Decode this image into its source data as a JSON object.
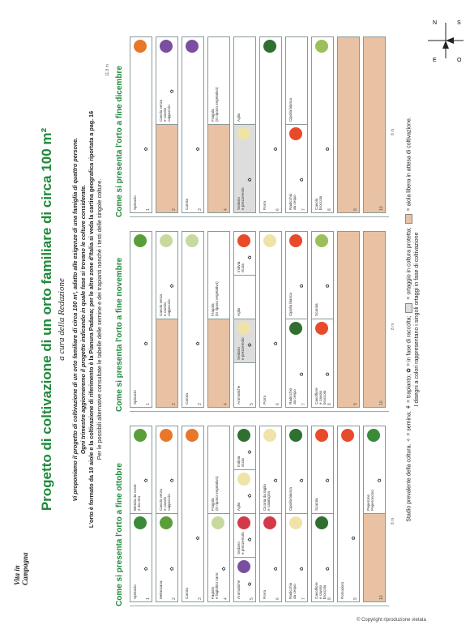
{
  "header": {
    "title": "Progetto di coltivazione di un orto familiare di circa 100 m²",
    "subtitle": "a cura della Redazione",
    "intro_line1": "Vi proponiamo il progetto di coltivazione di un orto familiare di circa 100 m², adatto alle esigenze di una famiglia di quattro persone.",
    "intro_line2": "Ogni trimestre aggiorneremo il progetto indicando in quale fase si trovano le colture considerate.",
    "intro_line3": "L'orto è formato da 10 aiole e la coltivazione di riferimento è la Pianura Padana; per le altre zone d'Italia si veda la cartina geografica riportata a pag. 16",
    "intro_line4": "Per le possibili alternative consultate le tabelle delle semine e dei trapianti nonché i testi delle singole colture."
  },
  "panels": [
    {
      "title": "Come si presenta l'orto a fine ottobre",
      "rows": [
        {
          "num": "1",
          "free": false,
          "cells": [
            {
              "label": "Spinacio",
              "gray": false,
              "sym": "✿"
            },
            {
              "label": "Bietola da coste\ne da orto",
              "gray": false,
              "sym": "✿"
            }
          ]
        },
        {
          "num": "2",
          "free": false,
          "cells": [
            {
              "label": "Melanzana",
              "gray": false,
              "sym": "✿"
            },
            {
              "label": "Cavolo verza\ne cavolo\ncappuccio",
              "gray": false,
              "sym": "✿"
            }
          ]
        },
        {
          "num": "3",
          "free": false,
          "cells": [
            {
              "label": "Carota",
              "gray": false,
              "sym": "✿"
            }
          ]
        },
        {
          "num": "4",
          "free": false,
          "cells": [
            {
              "label": "Fagiolo\ne fagiolino nano",
              "gray": false,
              "sym": "✿"
            },
            {
              "label": "Fragola\n(in riposo vegetativo)",
              "gray": false,
              "sym": ""
            }
          ]
        },
        {
          "num": "5",
          "free": false,
          "cells": [
            {
              "label": "Aromatiche",
              "gray": false,
              "sym": "✿"
            },
            {
              "label": "Sedano\ne prezzemolo",
              "gray": false,
              "sym": "✿"
            },
            {
              "label": "Aglio",
              "gray": false,
              "sym": "✿"
            },
            {
              "label": "Indivia\nriccia",
              "gray": false,
              "sym": "✿"
            }
          ]
        },
        {
          "num": "6",
          "free": false,
          "cells": [
            {
              "label": "Porro",
              "gray": false,
              "sym": "✿"
            },
            {
              "label": "Cicoria da taglio\ne catalogna",
              "gray": false,
              "sym": "✿"
            }
          ]
        },
        {
          "num": "7",
          "free": false,
          "cells": [
            {
              "label": "Radicchio\nda cespo",
              "gray": false,
              "sym": "✿"
            },
            {
              "label": "Cipolla bianca",
              "gray": false,
              "sym": "✿"
            }
          ]
        },
        {
          "num": "8",
          "free": false,
          "cells": [
            {
              "label": "Cavolfiore\ne cavolo\nbroccolo",
              "gray": false,
              "sym": "✿"
            },
            {
              "label": "Scarola",
              "gray": false,
              "sym": "✿"
            }
          ]
        },
        {
          "num": "9",
          "free": false,
          "cells": [
            {
              "label": "Pomodoro",
              "gray": false,
              "sym": "✿"
            }
          ]
        },
        {
          "num": "10",
          "free": true,
          "cells": [
            {
              "label": "",
              "gray": false,
              "sym": ""
            },
            {
              "label": "Peperone\nPeperoncino",
              "gray": false,
              "sym": "✿"
            }
          ]
        }
      ]
    },
    {
      "title": "Come si presenta l'orto a fine novembre",
      "rows": [
        {
          "num": "1",
          "free": false,
          "cells": [
            {
              "label": "Spinacio",
              "gray": false,
              "sym": "✿"
            }
          ]
        },
        {
          "num": "2",
          "free": true,
          "cells": [
            {
              "label": "",
              "gray": false,
              "sym": ""
            },
            {
              "label": "Cavolo verza\ne cavolo\ncappuccio",
              "gray": false,
              "sym": "✿"
            }
          ]
        },
        {
          "num": "3",
          "free": false,
          "cells": [
            {
              "label": "Carota",
              "gray": false,
              "sym": "✿"
            }
          ]
        },
        {
          "num": "4",
          "free": true,
          "cells": [
            {
              "label": "",
              "gray": false,
              "sym": ""
            },
            {
              "label": "Fragola\n(in riposo vegetativo)",
              "gray": false,
              "sym": ""
            }
          ]
        },
        {
          "num": "5",
          "free": false,
          "cells": [
            {
              "label": "Aromatiche",
              "gray": false,
              "sym": ""
            },
            {
              "label": "Sedano\ne prezzemolo",
              "gray": true,
              "sym": "✿"
            },
            {
              "label": "Aglio",
              "gray": false,
              "sym": ""
            },
            {
              "label": "Indivia\nriccia",
              "gray": false,
              "sym": "✿"
            }
          ]
        },
        {
          "num": "6",
          "free": false,
          "cells": [
            {
              "label": "Porro",
              "gray": false,
              "sym": "✿"
            }
          ]
        },
        {
          "num": "7",
          "free": false,
          "cells": [
            {
              "label": "Radicchio\nda cespo",
              "gray": false,
              "sym": "✿"
            },
            {
              "label": "Cipolla bianca",
              "gray": false,
              "sym": "✿"
            }
          ]
        },
        {
          "num": "8",
          "free": false,
          "cells": [
            {
              "label": "Cavolfiore\ne cavolo\nbroccolo",
              "gray": false,
              "sym": "✿"
            },
            {
              "label": "Scarola",
              "gray": false,
              "sym": "✿"
            }
          ]
        },
        {
          "num": "9",
          "free": true,
          "cells": [
            {
              "label": "",
              "gray": false,
              "sym": ""
            }
          ]
        },
        {
          "num": "10",
          "free": true,
          "cells": [
            {
              "label": "",
              "gray": false,
              "sym": ""
            }
          ]
        }
      ]
    },
    {
      "title": "Come si presenta l'orto a fine dicembre",
      "rows": [
        {
          "num": "1",
          "free": false,
          "cells": [
            {
              "label": "Spinacio",
              "gray": false,
              "sym": "✿"
            }
          ]
        },
        {
          "num": "2",
          "free": true,
          "cells": [
            {
              "label": "",
              "gray": false,
              "sym": ""
            },
            {
              "label": "Cavolo verza\ne cavolo\ncappuccio",
              "gray": false,
              "sym": "✿"
            }
          ]
        },
        {
          "num": "3",
          "free": false,
          "cells": [
            {
              "label": "Carota",
              "gray": false,
              "sym": "✿"
            }
          ]
        },
        {
          "num": "4",
          "free": true,
          "cells": [
            {
              "label": "",
              "gray": false,
              "sym": ""
            },
            {
              "label": "Fragola\n(in riposo vegetativo)",
              "gray": false,
              "sym": ""
            }
          ]
        },
        {
          "num": "5",
          "free": false,
          "cells": [
            {
              "label": "Sedano\ne prezzemolo",
              "gray": true,
              "sym": "✿"
            },
            {
              "label": "Aglio",
              "gray": false,
              "sym": ""
            }
          ]
        },
        {
          "num": "6",
          "free": false,
          "cells": [
            {
              "label": "Porro",
              "gray": false,
              "sym": "✿"
            }
          ]
        },
        {
          "num": "7",
          "free": false,
          "cells": [
            {
              "label": "Radicchio\nda cespo",
              "gray": false,
              "sym": "✿"
            },
            {
              "label": "Cipolla bianca",
              "gray": false,
              "sym": ""
            }
          ]
        },
        {
          "num": "8",
          "free": false,
          "cells": [
            {
              "label": "Cavolo\nbroccolo",
              "gray": false,
              "sym": "✿"
            }
          ]
        },
        {
          "num": "9",
          "free": true,
          "cells": [
            {
              "label": "",
              "gray": false,
              "sym": ""
            }
          ]
        },
        {
          "num": "10",
          "free": true,
          "cells": [
            {
              "label": "",
              "gray": false,
              "sym": ""
            }
          ]
        }
      ]
    }
  ],
  "dimensions": {
    "width_label": "8 m",
    "total_label": "11,8 m",
    "bed_label": "1 m",
    "path_label": "0,3 m"
  },
  "legend": {
    "line1_prefix": "Stadio prevalente della coltura.",
    "semina": "= semina;",
    "trapianto": "= trapianto;",
    "raccolta": "= in fase di raccolta;",
    "protetta": "= ortaggio in coltura protetta;",
    "libera": "= aiola libera in attesa di coltivazione.",
    "line2": "I disegni a colori rappresentano i singoli ortaggi in fase di coltivazione"
  },
  "compass": {
    "n": "N",
    "e": "E",
    "s": "S",
    "o": "O"
  },
  "colors": {
    "green_title": "#1f8a3a",
    "free_bed": "#e8c2a3",
    "protected": "#dddddd"
  },
  "footer": {
    "copyright": "© Copyright riproduzione vietata",
    "logo": "Vita in Campagna"
  }
}
